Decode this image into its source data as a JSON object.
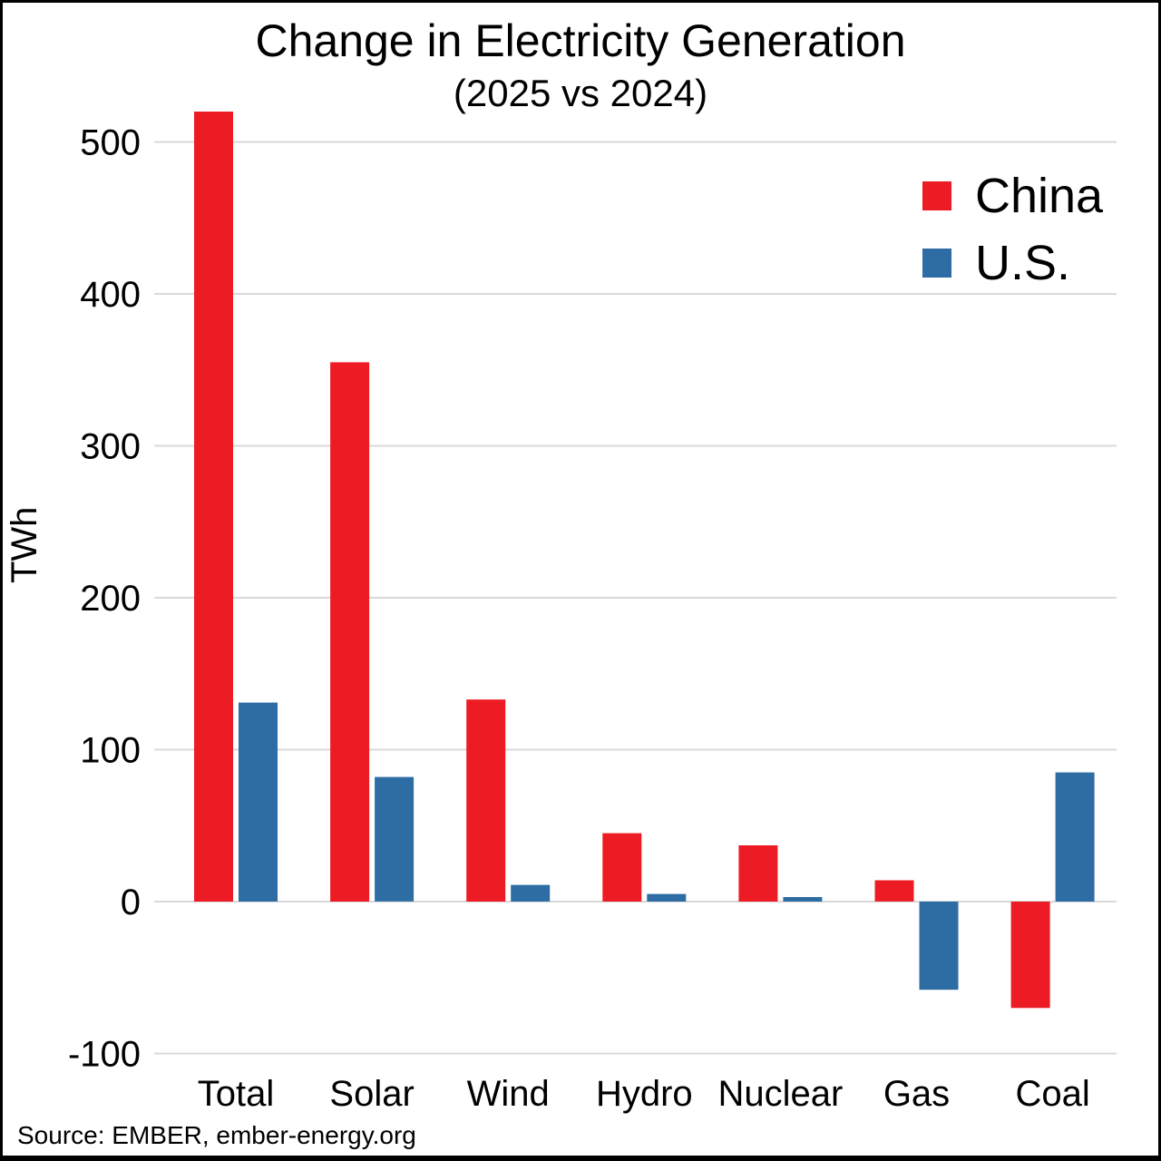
{
  "figure": {
    "source": "Source: EMBER, ember-energy.org"
  },
  "chart_data": {
    "type": "bar",
    "title": "Change in Electricity Generation",
    "subtitle": "(2025 vs 2024)",
    "ylabel": "TWh",
    "xlabel": "",
    "categories": [
      "Total",
      "Solar",
      "Wind",
      "Hydro",
      "Nuclear",
      "Gas",
      "Coal"
    ],
    "series": [
      {
        "name": "China",
        "color": "#ED1C24",
        "values": [
          520,
          355,
          133,
          45,
          37,
          14,
          -70
        ]
      },
      {
        "name": "U.S.",
        "color": "#2E6DA4",
        "values": [
          131,
          82,
          11,
          5,
          3,
          -58,
          85
        ]
      }
    ],
    "ylim": [
      -100,
      530
    ],
    "yticks": [
      -100,
      0,
      100,
      200,
      300,
      400,
      500
    ],
    "grid": true,
    "gridline_color": "#D9D9D9",
    "legend_position": "top-right",
    "background": "#FFFFFF"
  }
}
